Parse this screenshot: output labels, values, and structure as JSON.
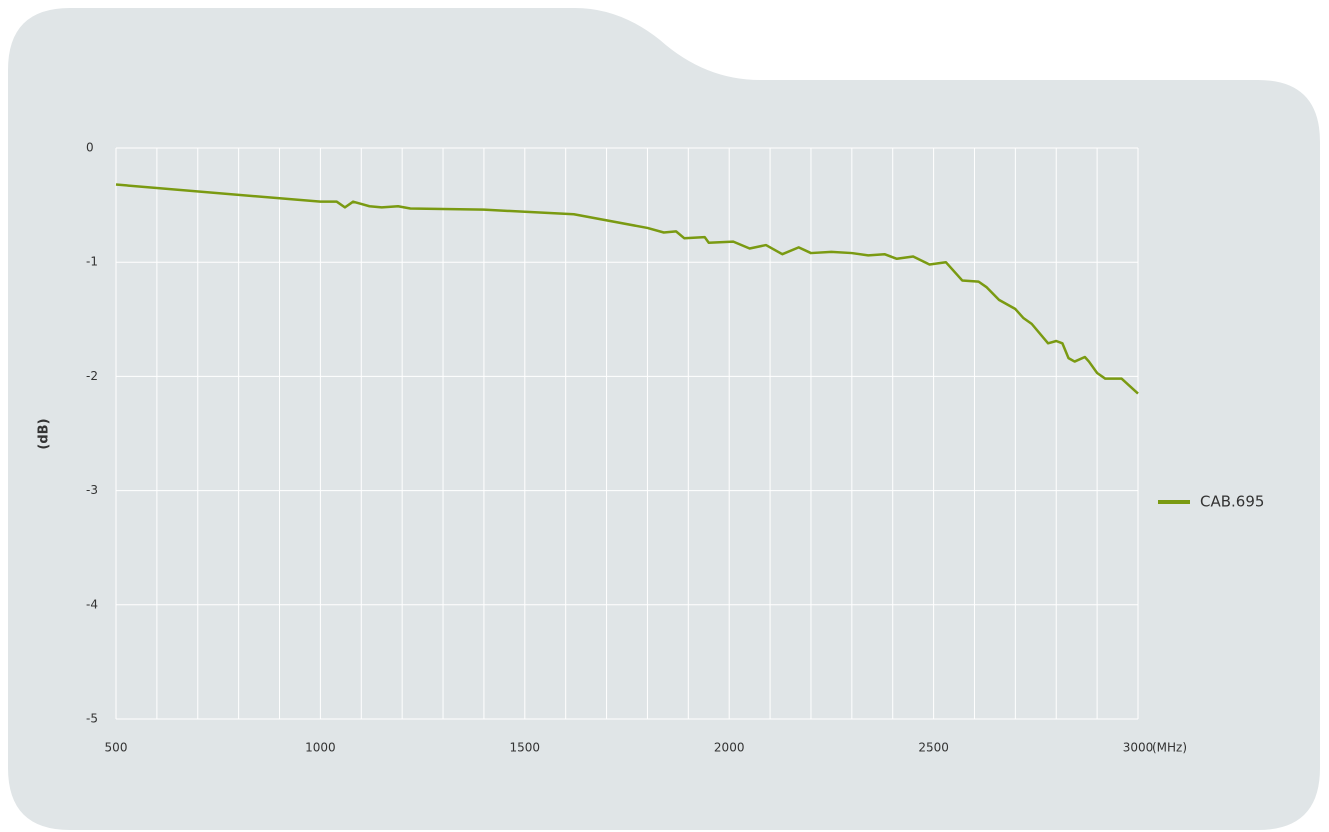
{
  "chart_data": {
    "type": "line",
    "x": [
      500,
      1000,
      1040,
      1060,
      1080,
      1100,
      1120,
      1150,
      1190,
      1220,
      1400,
      1620,
      1800,
      1840,
      1870,
      1890,
      1940,
      1950,
      2010,
      2050,
      2090,
      2130,
      2170,
      2200,
      2250,
      2300,
      2340,
      2380,
      2410,
      2450,
      2490,
      2530,
      2570,
      2610,
      2630,
      2660,
      2700,
      2720,
      2740,
      2780,
      2800,
      2815,
      2830,
      2845,
      2870,
      2880,
      2900,
      2920,
      2960,
      3000
    ],
    "series": [
      {
        "name": "CAB.695",
        "color": "#7a9a12",
        "values": [
          -0.32,
          -0.47,
          -0.47,
          -0.52,
          -0.47,
          -0.49,
          -0.51,
          -0.52,
          -0.51,
          -0.53,
          -0.54,
          -0.58,
          -0.7,
          -0.74,
          -0.73,
          -0.79,
          -0.78,
          -0.83,
          -0.82,
          -0.88,
          -0.85,
          -0.93,
          -0.87,
          -0.92,
          -0.91,
          -0.92,
          -0.94,
          -0.93,
          -0.97,
          -0.95,
          -1.02,
          -1.0,
          -1.16,
          -1.17,
          -1.22,
          -1.33,
          -1.41,
          -1.49,
          -1.54,
          -1.71,
          -1.69,
          -1.71,
          -1.84,
          -1.87,
          -1.83,
          -1.87,
          -1.97,
          -2.02,
          -2.02,
          -2.15
        ]
      }
    ],
    "xlim": [
      500,
      3000
    ],
    "xticks": [
      500,
      1000,
      1500,
      2000,
      2500,
      3000
    ],
    "xminor_ticks": [
      600,
      700,
      800,
      900,
      1100,
      1200,
      1300,
      1400,
      1600,
      1700,
      1800,
      1900,
      2100,
      2200,
      2300,
      2400,
      2600,
      2700,
      2800,
      2900
    ],
    "ylim": [
      -5,
      0
    ],
    "yticks": [
      0,
      -1,
      -2,
      -3,
      -4,
      -5
    ],
    "x_label": "(MHz)",
    "y_label": "(dB)",
    "grid": true,
    "legend": "right"
  }
}
